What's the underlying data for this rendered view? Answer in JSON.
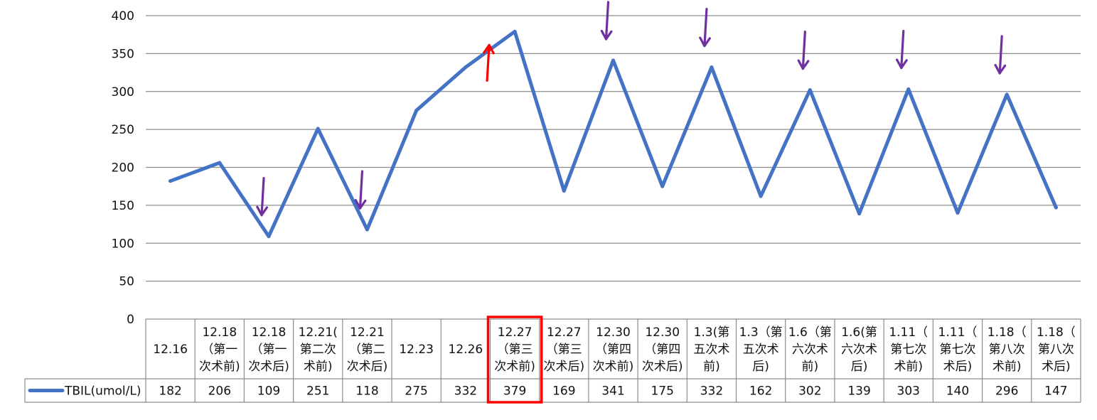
{
  "chart_data": {
    "type": "line",
    "categories": [
      [
        "12.16"
      ],
      [
        "12.18",
        "（第一",
        "次术前)"
      ],
      [
        "12.18",
        "（第一",
        "次术后)"
      ],
      [
        "12.21(",
        "第二次",
        "术前)"
      ],
      [
        "12.21",
        "（第二",
        "次术后)"
      ],
      [
        "12.23"
      ],
      [
        "12.26"
      ],
      [
        "12.27",
        "（第三",
        "次术前)"
      ],
      [
        "12.27",
        "（第三",
        "次术后)"
      ],
      [
        "12.30",
        "（第四",
        "次术前)"
      ],
      [
        "12.30",
        "（第四",
        "次术后)"
      ],
      [
        "1.3(第",
        "五次术",
        "前)"
      ],
      [
        "1.3（第",
        "五次术",
        "后)"
      ],
      [
        "1.6（第",
        "六次术",
        "前)"
      ],
      [
        "1.6(第",
        "六次术",
        "后)"
      ],
      [
        "1.11（",
        "第七次",
        "术前)"
      ],
      [
        "1.11（",
        "第七次",
        "术后)"
      ],
      [
        "1.18（",
        "第八次",
        "术前)"
      ],
      [
        "1.18（",
        "第八次",
        "术后)"
      ]
    ],
    "series": [
      {
        "name": "TBIL(umol/L)",
        "color": "#4472C4",
        "values": [
          182,
          206,
          109,
          251,
          118,
          275,
          332,
          379,
          169,
          341,
          175,
          332,
          162,
          302,
          139,
          303,
          140,
          296,
          147
        ]
      }
    ],
    "ylim": [
      0,
      400
    ],
    "yticks": [
      0,
      50,
      100,
      150,
      200,
      250,
      300,
      350,
      400
    ],
    "grid": true,
    "legend": "data-table-row",
    "highlighted_category_index": 7,
    "annotations": {
      "red_up_arrow_at_index": 7,
      "purple_down_arrows_at_indices": [
        2,
        4,
        9,
        11,
        13,
        15,
        17
      ],
      "red_color": "#FF0000",
      "purple_color": "#7030A0"
    }
  }
}
